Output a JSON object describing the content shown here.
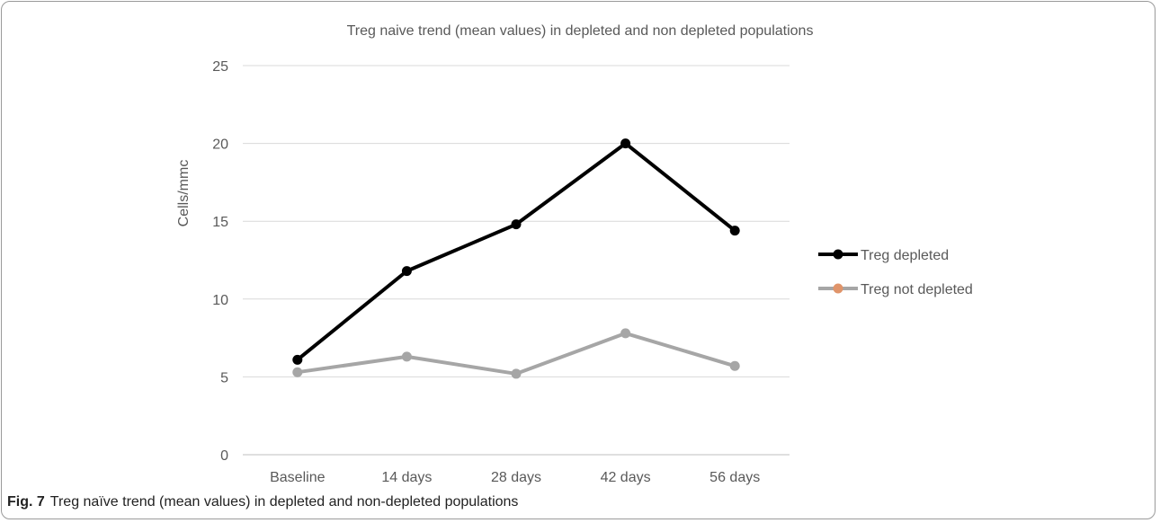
{
  "chart_data": {
    "type": "line",
    "title": "Treg naive trend (mean values) in depleted and non depleted populations",
    "xlabel": "",
    "ylabel": "Cells/mmc",
    "categories": [
      "Baseline",
      "14 days",
      "28 days",
      "42 days",
      "56 days"
    ],
    "ylim": [
      0,
      25
    ],
    "yticks": [
      "0",
      "5",
      "10",
      "15",
      "20",
      "25"
    ],
    "grid": true,
    "legend": "right",
    "series": [
      {
        "name": "Treg depleted",
        "values": [
          6.1,
          11.8,
          14.8,
          20.0,
          14.4
        ],
        "color": "#000000",
        "marker_color": "#000000"
      },
      {
        "name": "Treg not depleted",
        "values": [
          5.3,
          6.3,
          5.2,
          7.8,
          5.7
        ],
        "color": "#a6a6a6",
        "marker_color": "#e0946a"
      }
    ]
  },
  "caption": {
    "label": "Fig. 7",
    "text": "Treg naïve trend (mean values) in depleted and non-depleted populations"
  }
}
